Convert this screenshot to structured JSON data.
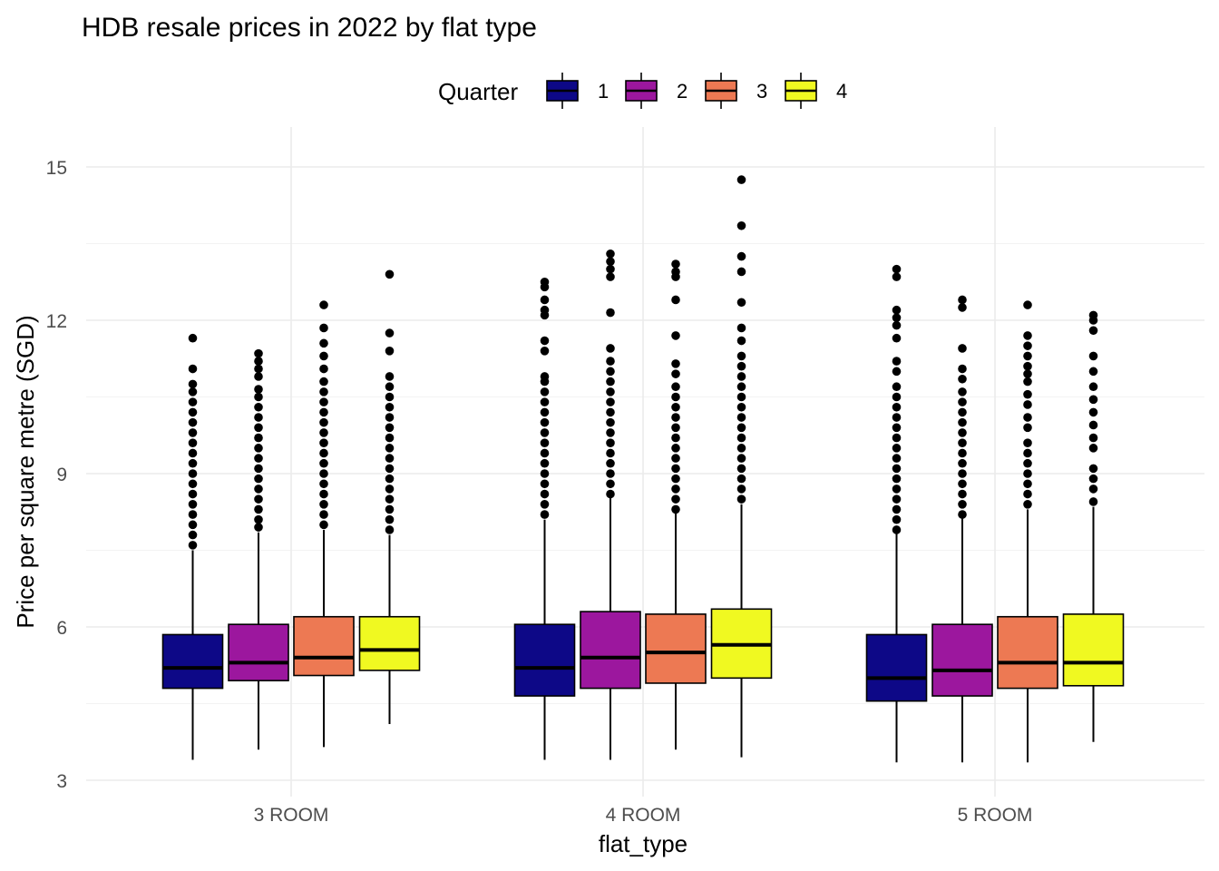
{
  "chart_data": {
    "type": "boxplot",
    "title": "HDB resale prices in 2022 by flat type",
    "xlabel": "flat_type",
    "ylabel": "Price per square metre (SGD)",
    "ylim": [
      3,
      15
    ],
    "y_ticks": [
      3,
      6,
      9,
      12,
      15
    ],
    "y_tick_labels": [
      "3",
      "6",
      "9",
      "12",
      "15"
    ],
    "grid": true,
    "legend": {
      "title": "Quarter",
      "position": "top"
    },
    "categories": [
      "3 ROOM",
      "4 ROOM",
      "5 ROOM"
    ],
    "series": [
      {
        "name": "1",
        "color": "#0d0887",
        "boxes": [
          {
            "whisker_low": 3.4,
            "q1": 4.8,
            "median": 5.2,
            "q3": 5.85,
            "whisker_high": 7.5,
            "outliers": [
              7.6,
              7.8,
              8.0,
              8.2,
              8.4,
              8.6,
              8.8,
              9.0,
              9.2,
              9.4,
              9.6,
              9.8,
              10.0,
              10.2,
              10.4,
              10.6,
              10.75,
              11.05,
              11.65
            ]
          },
          {
            "whisker_low": 3.4,
            "q1": 4.65,
            "median": 5.2,
            "q3": 6.05,
            "whisker_high": 8.1,
            "outliers": [
              8.2,
              8.4,
              8.6,
              8.8,
              9.0,
              9.2,
              9.4,
              9.6,
              9.8,
              10.0,
              10.2,
              10.4,
              10.6,
              10.8,
              10.9,
              11.4,
              11.6,
              12.1,
              12.2,
              12.4,
              12.65,
              12.75
            ]
          },
          {
            "whisker_low": 3.35,
            "q1": 4.55,
            "median": 5.0,
            "q3": 5.85,
            "whisker_high": 7.85,
            "outliers": [
              7.9,
              8.1,
              8.3,
              8.5,
              8.7,
              8.9,
              9.1,
              9.3,
              9.5,
              9.7,
              9.9,
              10.1,
              10.3,
              10.5,
              10.7,
              11.0,
              11.2,
              11.65,
              11.9,
              12.05,
              12.2,
              12.85,
              13.0
            ]
          }
        ]
      },
      {
        "name": "2",
        "color": "#9c179e",
        "boxes": [
          {
            "whisker_low": 3.6,
            "q1": 4.95,
            "median": 5.3,
            "q3": 6.05,
            "whisker_high": 7.85,
            "outliers": [
              7.95,
              8.1,
              8.3,
              8.5,
              8.7,
              8.9,
              9.1,
              9.3,
              9.5,
              9.7,
              9.9,
              10.1,
              10.3,
              10.5,
              10.65,
              10.9,
              11.05,
              11.2,
              11.35
            ]
          },
          {
            "whisker_low": 3.4,
            "q1": 4.8,
            "median": 5.4,
            "q3": 6.3,
            "whisker_high": 8.55,
            "outliers": [
              8.6,
              8.8,
              9.0,
              9.2,
              9.4,
              9.6,
              9.8,
              10.0,
              10.2,
              10.4,
              10.6,
              10.8,
              11.0,
              11.2,
              11.45,
              12.15,
              12.85,
              13.0,
              13.15,
              13.3
            ]
          },
          {
            "whisker_low": 3.35,
            "q1": 4.65,
            "median": 5.15,
            "q3": 6.05,
            "whisker_high": 8.15,
            "outliers": [
              8.2,
              8.4,
              8.6,
              8.8,
              9.0,
              9.2,
              9.4,
              9.6,
              9.8,
              10.0,
              10.2,
              10.4,
              10.6,
              10.85,
              11.05,
              11.45,
              12.25,
              12.4
            ]
          }
        ]
      },
      {
        "name": "3",
        "color": "#ed7953",
        "boxes": [
          {
            "whisker_low": 3.65,
            "q1": 5.05,
            "median": 5.4,
            "q3": 6.2,
            "whisker_high": 7.9,
            "outliers": [
              8.0,
              8.2,
              8.4,
              8.6,
              8.8,
              9.0,
              9.2,
              9.4,
              9.6,
              9.8,
              10.0,
              10.2,
              10.4,
              10.6,
              10.8,
              11.05,
              11.3,
              11.55,
              11.85,
              12.3
            ]
          },
          {
            "whisker_low": 3.6,
            "q1": 4.9,
            "median": 5.5,
            "q3": 6.25,
            "whisker_high": 8.25,
            "outliers": [
              8.3,
              8.5,
              8.7,
              8.9,
              9.1,
              9.3,
              9.5,
              9.7,
              9.9,
              10.1,
              10.3,
              10.5,
              10.7,
              10.95,
              11.15,
              11.7,
              12.4,
              12.85,
              12.95,
              13.1
            ]
          },
          {
            "whisker_low": 3.35,
            "q1": 4.8,
            "median": 5.3,
            "q3": 6.2,
            "whisker_high": 8.3,
            "outliers": [
              8.4,
              8.6,
              8.8,
              9.0,
              9.2,
              9.4,
              9.6,
              9.9,
              10.1,
              10.35,
              10.55,
              10.8,
              10.95,
              11.1,
              11.3,
              11.5,
              11.7,
              12.3
            ]
          }
        ]
      },
      {
        "name": "4",
        "color": "#f0f921",
        "boxes": [
          {
            "whisker_low": 4.1,
            "q1": 5.15,
            "median": 5.55,
            "q3": 6.2,
            "whisker_high": 7.8,
            "outliers": [
              7.9,
              8.1,
              8.3,
              8.5,
              8.7,
              8.9,
              9.1,
              9.3,
              9.5,
              9.7,
              9.9,
              10.1,
              10.3,
              10.5,
              10.7,
              10.9,
              11.4,
              11.75,
              12.9
            ]
          },
          {
            "whisker_low": 3.45,
            "q1": 5.0,
            "median": 5.65,
            "q3": 6.35,
            "whisker_high": 8.4,
            "outliers": [
              8.5,
              8.7,
              8.9,
              9.1,
              9.3,
              9.5,
              9.7,
              9.9,
              10.1,
              10.3,
              10.5,
              10.7,
              10.9,
              11.1,
              11.3,
              11.6,
              11.85,
              12.35,
              12.95,
              13.25,
              13.85,
              14.75
            ]
          },
          {
            "whisker_low": 3.75,
            "q1": 4.85,
            "median": 5.3,
            "q3": 6.25,
            "whisker_high": 8.35,
            "outliers": [
              8.45,
              8.7,
              8.9,
              9.1,
              9.5,
              9.7,
              9.95,
              10.2,
              10.45,
              10.7,
              11.0,
              11.3,
              11.8,
              12.0,
              12.1
            ]
          }
        ]
      }
    ]
  }
}
